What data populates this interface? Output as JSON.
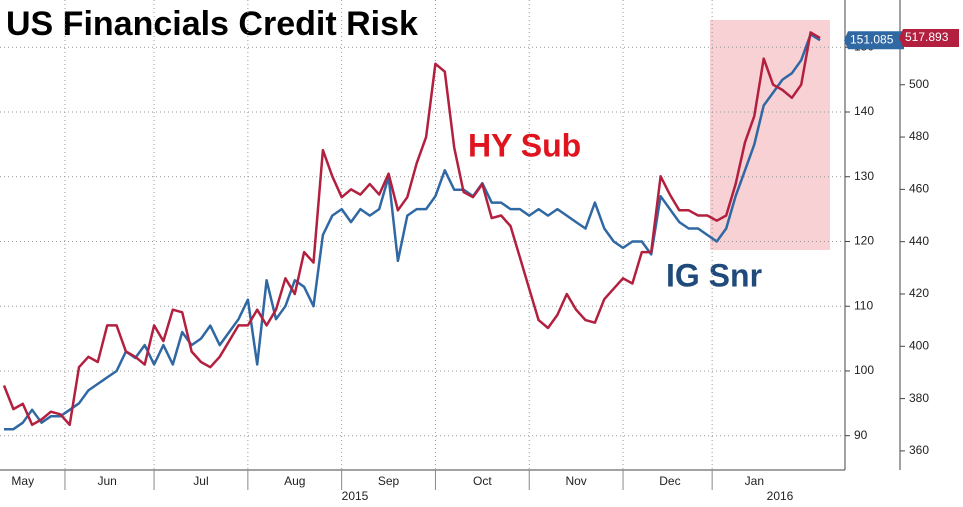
{
  "chart_data": {
    "type": "line",
    "title": "US Financials Credit Risk",
    "annotations": [
      "HY Sub",
      "IG Snr"
    ],
    "year_labels": [
      "2015",
      "2016"
    ],
    "categories": [
      null,
      null,
      "May",
      null,
      null,
      null,
      null,
      null,
      null,
      null,
      null,
      "Jun",
      null,
      null,
      null,
      null,
      null,
      null,
      null,
      null,
      null,
      "Jul",
      null,
      null,
      null,
      null,
      null,
      null,
      null,
      null,
      null,
      "Aug",
      null,
      null,
      null,
      null,
      null,
      null,
      null,
      null,
      null,
      "Sep",
      null,
      null,
      null,
      null,
      null,
      null,
      null,
      null,
      null,
      "Oct",
      null,
      null,
      null,
      null,
      null,
      null,
      null,
      null,
      null,
      "Nov",
      null,
      null,
      null,
      null,
      null,
      null,
      null,
      null,
      null,
      "Dec",
      null,
      null,
      null,
      null,
      null,
      null,
      null,
      null,
      "Jan",
      null,
      null,
      null,
      null,
      null,
      null,
      null
    ],
    "series": [
      {
        "name": "IG Snr",
        "color": "#2f68a3",
        "axis": "y",
        "values": [
          91,
          91,
          92,
          94,
          92,
          93,
          93,
          94,
          95,
          97,
          98,
          99,
          100,
          103,
          102,
          104,
          101,
          104,
          101,
          106,
          104,
          105,
          107,
          104,
          106,
          108,
          111,
          101,
          114,
          108,
          110,
          114,
          113,
          110,
          121,
          124,
          125,
          123,
          125,
          124,
          125,
          130,
          117,
          124,
          125,
          125,
          127,
          131,
          128,
          128,
          127,
          129,
          126,
          126,
          125,
          125,
          124,
          125,
          124,
          125,
          124,
          123,
          122,
          126,
          122,
          120,
          119,
          120,
          120,
          118,
          127,
          125,
          123,
          122,
          122,
          121,
          120,
          122,
          127,
          131,
          135,
          141,
          143,
          145,
          146,
          148,
          152,
          151.085
        ]
      },
      {
        "name": "HY Sub",
        "color": "#b3203f",
        "axis": "y2",
        "values": [
          385,
          376,
          378,
          370,
          372,
          375,
          374,
          370,
          392,
          396,
          394,
          408,
          408,
          398,
          396,
          393,
          408,
          402,
          414,
          413,
          398,
          394,
          392,
          396,
          402,
          408,
          408,
          414,
          408,
          414,
          426,
          420,
          436,
          432,
          475,
          465,
          457,
          460,
          458,
          462,
          458,
          466,
          452,
          457,
          470,
          480,
          508,
          505,
          476,
          459,
          457,
          462,
          449,
          450,
          446,
          434,
          422,
          410,
          407,
          412,
          420,
          414,
          410,
          409,
          418,
          422,
          426,
          424,
          436,
          436,
          465,
          458,
          452,
          452,
          450,
          450,
          448,
          450,
          462,
          478,
          488,
          510,
          500,
          498,
          495,
          500,
          520,
          517.893
        ]
      }
    ],
    "ylim": [
      84.7,
      157.3
    ],
    "yticks": [
      90,
      100,
      110,
      120,
      130,
      140,
      150
    ],
    "y2lim": [
      352.7,
      532.4
    ],
    "y2ticks": [
      360,
      380,
      400,
      420,
      440,
      460,
      480,
      500
    ],
    "grid": true
  }
}
